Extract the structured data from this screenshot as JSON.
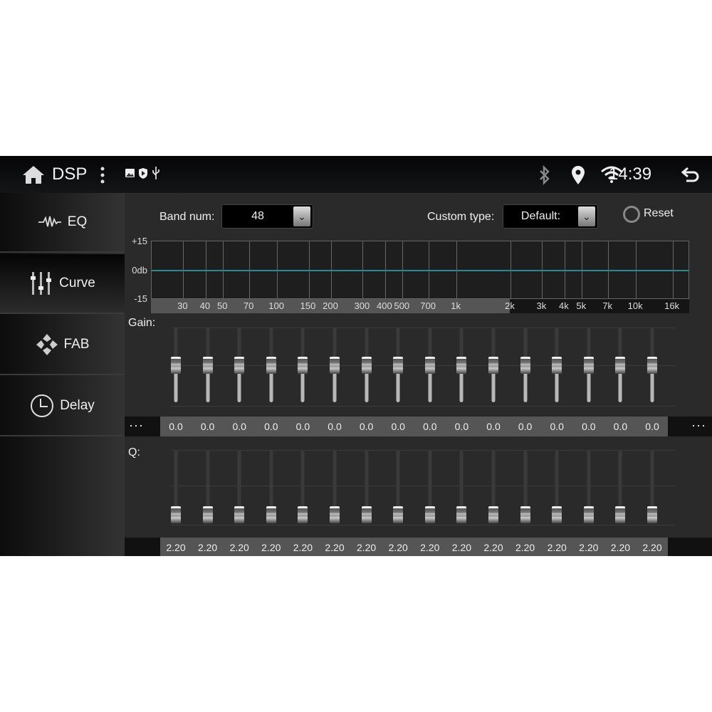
{
  "status_bar": {
    "title": "DSP",
    "time": "14:39",
    "icons": [
      "home-icon",
      "more-vert-icon",
      "image-icon",
      "shield-play-icon",
      "usb-icon",
      "bluetooth-icon",
      "location-icon",
      "wifi-icon",
      "back-icon"
    ]
  },
  "sidebar": {
    "items": [
      {
        "label": "EQ",
        "icon": "waveform-icon",
        "selected": false
      },
      {
        "label": "Curve",
        "icon": "sliders-icon",
        "selected": true
      },
      {
        "label": "FAB",
        "icon": "fader-balance-icon",
        "selected": false
      },
      {
        "label": "Delay",
        "icon": "clock-icon",
        "selected": false
      }
    ]
  },
  "controls": {
    "band_num_label": "Band num:",
    "band_num_value": "48",
    "custom_type_label": "Custom type:",
    "custom_type_value": "Default:",
    "reset_label": "Reset"
  },
  "chart_data": {
    "type": "line",
    "x_scale": "log",
    "xlim": [
      20,
      20000
    ],
    "ylim": [
      -15,
      15
    ],
    "y_ticks": [
      "+15",
      "0db",
      "-15"
    ],
    "x_ticks": [
      {
        "v": 30,
        "l": "30"
      },
      {
        "v": 40,
        "l": "40"
      },
      {
        "v": 50,
        "l": "50"
      },
      {
        "v": 70,
        "l": "70"
      },
      {
        "v": 100,
        "l": "100"
      },
      {
        "v": 150,
        "l": "150"
      },
      {
        "v": 200,
        "l": "200"
      },
      {
        "v": 300,
        "l": "300"
      },
      {
        "v": 400,
        "l": "400"
      },
      {
        "v": 500,
        "l": "500"
      },
      {
        "v": 700,
        "l": "700"
      },
      {
        "v": 1000,
        "l": "1k"
      },
      {
        "v": 2000,
        "l": "2k"
      },
      {
        "v": 3000,
        "l": "3k"
      },
      {
        "v": 4000,
        "l": "4k"
      },
      {
        "v": 5000,
        "l": "5k"
      },
      {
        "v": 7000,
        "l": "7k"
      },
      {
        "v": 10000,
        "l": "10k"
      },
      {
        "v": 16000,
        "l": "16k"
      }
    ],
    "curve_gain_db": 0,
    "line_color": "#2a8a96",
    "grid": true
  },
  "gain": {
    "label": "Gain:",
    "range": [
      -15,
      15
    ],
    "values": [
      "0.0",
      "0.0",
      "0.0",
      "0.0",
      "0.0",
      "0.0",
      "0.0",
      "0.0",
      "0.0",
      "0.0",
      "0.0",
      "0.0",
      "0.0",
      "0.0",
      "0.0",
      "0.0"
    ],
    "prev_label": "···",
    "next_label": "···"
  },
  "q": {
    "label": "Q:",
    "level_fraction": 0.22,
    "values": [
      "2.20",
      "2.20",
      "2.20",
      "2.20",
      "2.20",
      "2.20",
      "2.20",
      "2.20",
      "2.20",
      "2.20",
      "2.20",
      "2.20",
      "2.20",
      "2.20",
      "2.20",
      "2.20"
    ]
  }
}
